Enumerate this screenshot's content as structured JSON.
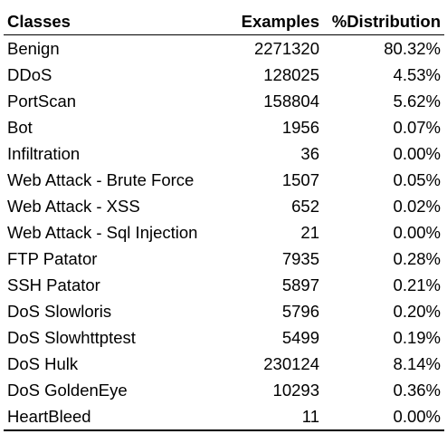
{
  "table": {
    "headers": [
      "Classes",
      "Examples",
      "%Distribution"
    ],
    "rows": [
      {
        "cls": "Benign",
        "examples": "2271320",
        "dist": "80.32%"
      },
      {
        "cls": "DDoS",
        "examples": "128025",
        "dist": "4.53%"
      },
      {
        "cls": "PortScan",
        "examples": "158804",
        "dist": "5.62%"
      },
      {
        "cls": "Bot",
        "examples": "1956",
        "dist": "0.07%"
      },
      {
        "cls": "Infiltration",
        "examples": "36",
        "dist": "0.00%"
      },
      {
        "cls": "Web Attack - Brute Force",
        "examples": "1507",
        "dist": "0.05%"
      },
      {
        "cls": "Web Attack - XSS",
        "examples": "652",
        "dist": "0.02%"
      },
      {
        "cls": "Web Attack - Sql Injection",
        "examples": "21",
        "dist": "0.00%"
      },
      {
        "cls": "FTP Patator",
        "examples": "7935",
        "dist": "0.28%"
      },
      {
        "cls": "SSH Patator",
        "examples": "5897",
        "dist": "0.21%"
      },
      {
        "cls": "DoS Slowloris",
        "examples": "5796",
        "dist": "0.20%"
      },
      {
        "cls": "DoS Slowhttptest",
        "examples": "5499",
        "dist": "0.19%"
      },
      {
        "cls": "DoS Hulk",
        "examples": "230124",
        "dist": "8.14%"
      },
      {
        "cls": "DoS GoldenEye",
        "examples": "10293",
        "dist": "0.36%"
      },
      {
        "cls": "HeartBleed",
        "examples": "11",
        "dist": "0.00%"
      }
    ]
  }
}
